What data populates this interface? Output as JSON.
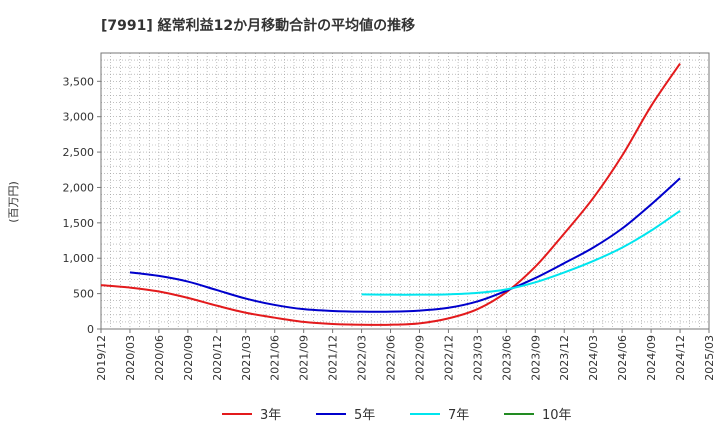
{
  "chart_data": {
    "type": "line",
    "title": "[7991]  経常利益12か月移動合計の平均値の推移",
    "ylabel": "(百万円)",
    "xlabel": "",
    "ylim": [
      0,
      3900
    ],
    "yticks": [
      0,
      500,
      1000,
      1500,
      2000,
      2500,
      3000,
      3500
    ],
    "ytick_labels": [
      "0",
      "500",
      "1,000",
      "1,500",
      "2,000",
      "2,500",
      "3,000",
      "3,500"
    ],
    "x_start": "2019/12",
    "x_end": "2025/03",
    "xtick_labels": [
      "2019/12",
      "2020/03",
      "2020/06",
      "2020/09",
      "2020/12",
      "2021/03",
      "2021/06",
      "2021/09",
      "2021/12",
      "2022/03",
      "2022/06",
      "2022/09",
      "2022/12",
      "2023/03",
      "2023/06",
      "2023/09",
      "2023/12",
      "2024/03",
      "2024/06",
      "2024/09",
      "2024/12",
      "2025/03"
    ],
    "grid": true,
    "legend_position": "bottom",
    "series": [
      {
        "name": "3年",
        "color": "#e31a1c",
        "points": [
          [
            "2019/12",
            620
          ],
          [
            "2020/03",
            585
          ],
          [
            "2020/06",
            530
          ],
          [
            "2020/09",
            440
          ],
          [
            "2020/12",
            330
          ],
          [
            "2021/03",
            230
          ],
          [
            "2021/06",
            160
          ],
          [
            "2021/09",
            100
          ],
          [
            "2021/12",
            70
          ],
          [
            "2022/03",
            60
          ],
          [
            "2022/06",
            60
          ],
          [
            "2022/09",
            80
          ],
          [
            "2022/12",
            150
          ],
          [
            "2023/03",
            280
          ],
          [
            "2023/06",
            520
          ],
          [
            "2023/09",
            880
          ],
          [
            "2023/12",
            1350
          ],
          [
            "2024/03",
            1850
          ],
          [
            "2024/06",
            2450
          ],
          [
            "2024/09",
            3150
          ],
          [
            "2024/12",
            3750
          ]
        ]
      },
      {
        "name": "5年",
        "color": "#0000cc",
        "points": [
          [
            "2020/03",
            800
          ],
          [
            "2020/06",
            750
          ],
          [
            "2020/09",
            670
          ],
          [
            "2020/12",
            550
          ],
          [
            "2021/03",
            430
          ],
          [
            "2021/06",
            340
          ],
          [
            "2021/09",
            280
          ],
          [
            "2021/12",
            255
          ],
          [
            "2022/03",
            245
          ],
          [
            "2022/06",
            245
          ],
          [
            "2022/09",
            260
          ],
          [
            "2022/12",
            300
          ],
          [
            "2023/03",
            390
          ],
          [
            "2023/06",
            540
          ],
          [
            "2023/09",
            720
          ],
          [
            "2023/12",
            930
          ],
          [
            "2024/03",
            1150
          ],
          [
            "2024/06",
            1420
          ],
          [
            "2024/09",
            1760
          ],
          [
            "2024/12",
            2130
          ]
        ]
      },
      {
        "name": "7年",
        "color": "#00e5ee",
        "points": [
          [
            "2022/03",
            490
          ],
          [
            "2022/06",
            485
          ],
          [
            "2022/09",
            485
          ],
          [
            "2022/12",
            490
          ],
          [
            "2023/03",
            510
          ],
          [
            "2023/06",
            560
          ],
          [
            "2023/09",
            660
          ],
          [
            "2023/12",
            800
          ],
          [
            "2024/03",
            960
          ],
          [
            "2024/06",
            1150
          ],
          [
            "2024/09",
            1390
          ],
          [
            "2024/12",
            1670
          ]
        ]
      },
      {
        "name": "10年",
        "color": "#228b22",
        "points": []
      }
    ]
  }
}
